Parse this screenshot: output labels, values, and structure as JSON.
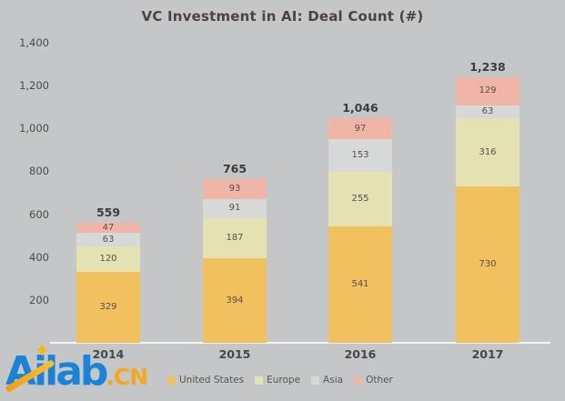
{
  "title": "VC Investment in AI: Deal Count (#)",
  "chart_data": {
    "type": "bar",
    "stacked": true,
    "title": "VC Investment in AI: Deal Count (#)",
    "categories": [
      "2014",
      "2015",
      "2016",
      "2017"
    ],
    "series": [
      {
        "name": "United States",
        "color": "#F1C05F",
        "values": [
          329,
          394,
          541,
          730
        ]
      },
      {
        "name": "Europe",
        "color": "#E4E1B2",
        "values": [
          120,
          187,
          255,
          316
        ]
      },
      {
        "name": "Asia",
        "color": "#D7D9D8",
        "values": [
          63,
          91,
          153,
          63
        ]
      },
      {
        "name": "Other",
        "color": "#F1B5A8",
        "values": [
          47,
          93,
          97,
          129
        ]
      }
    ],
    "totals": [
      559,
      765,
      1046,
      1238
    ],
    "totals_labels": [
      "559",
      "765",
      "1,046",
      "1,238"
    ],
    "yticks": [
      {
        "label": "1,400",
        "value": 1400
      },
      {
        "label": "1,200",
        "value": 1200
      },
      {
        "label": "1,000",
        "value": 1000
      },
      {
        "label": "800",
        "value": 800
      },
      {
        "label": "600",
        "value": 600
      },
      {
        "label": "400",
        "value": 400
      },
      {
        "label": "200",
        "value": 200
      }
    ],
    "ylim": [
      0,
      1400
    ],
    "grid": false,
    "legend_position": "bottom"
  },
  "legend": {
    "items": [
      "United States",
      "Europe",
      "Asia",
      "Other"
    ]
  },
  "logo": {
    "brand": "Ailab",
    "suffix": ".CN",
    "star_icon": "✦"
  },
  "colors": {
    "background": "#C5C6C7",
    "axis_line": "#F4F4F2",
    "title_text": "#4A4541",
    "logo_blue": "#1A83D6",
    "logo_orange": "#F5A81C"
  }
}
